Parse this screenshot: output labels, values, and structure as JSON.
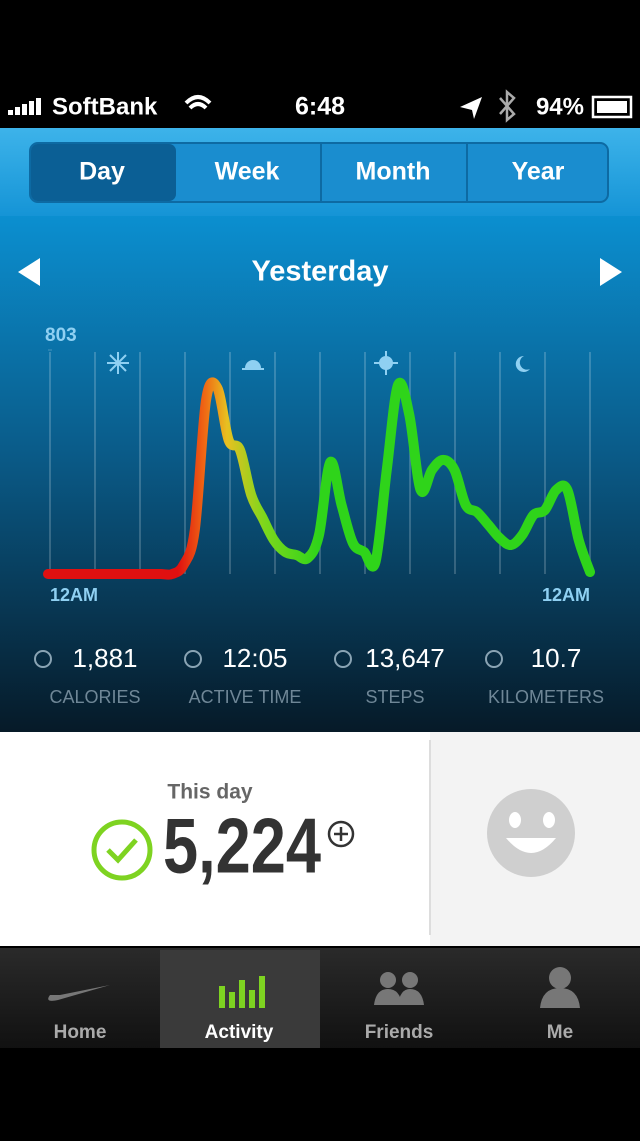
{
  "status_bar": {
    "carrier": "SoftBank",
    "time": "6:48",
    "battery": "94%"
  },
  "tabs": [
    "Day",
    "Week",
    "Month",
    "Year"
  ],
  "period": "Yesterday",
  "chart_data": {
    "type": "line",
    "ylim": [
      0,
      803
    ],
    "yticks": [
      803
    ],
    "x_labels": [
      "12AM",
      "12AM"
    ],
    "values": [
      0,
      0,
      0,
      0,
      0,
      0,
      0,
      0,
      0,
      0,
      0,
      0,
      32,
      158,
      624,
      667,
      480,
      445,
      283,
      201,
      122,
      79,
      68,
      57,
      140,
      401,
      247,
      111,
      79,
      43,
      373,
      678,
      570,
      301,
      373,
      409,
      373,
      247,
      222,
      176,
      129,
      104,
      140,
      212,
      229,
      301,
      301,
      122,
      7
    ]
  },
  "stats": [
    {
      "value": "1,881",
      "label": "CALORIES"
    },
    {
      "value": "12:05",
      "label": "ACTIVE TIME"
    },
    {
      "value": "13,647",
      "label": "STEPS"
    },
    {
      "value": "10.7",
      "label": "KILOMETERS"
    }
  ],
  "summary": {
    "label": "This day",
    "fuel": "5,224"
  },
  "tab_bar": [
    "Home",
    "Activity",
    "Friends",
    "Me"
  ]
}
